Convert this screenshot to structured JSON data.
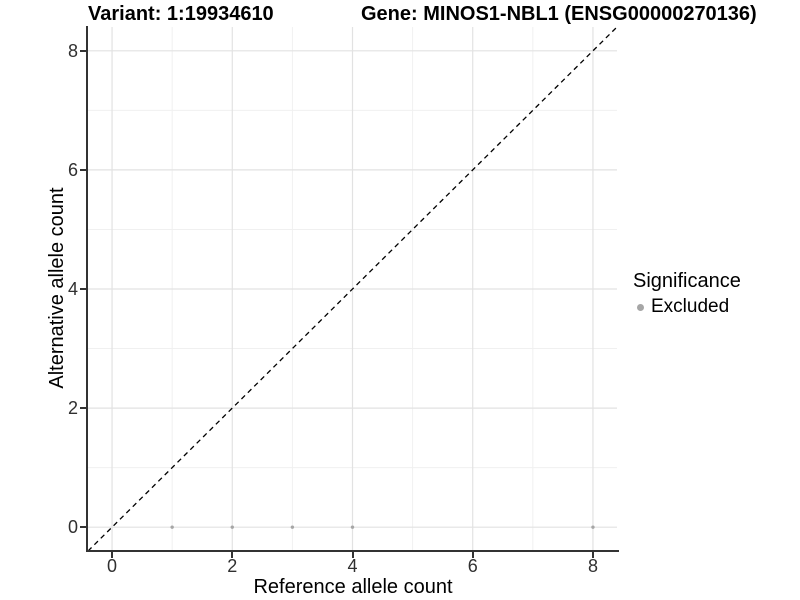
{
  "chart_data": {
    "type": "scatter",
    "title_left": "Variant: 1:19934610",
    "title_right": "Gene: MINOS1-NBL1 (ENSG00000270136)",
    "xlabel": "Reference allele count",
    "ylabel": "Alternative allele count",
    "xlim": [
      -0.4,
      8.4
    ],
    "ylim": [
      -0.4,
      8.4
    ],
    "x_ticks": [
      0,
      2,
      4,
      6,
      8
    ],
    "y_ticks": [
      0,
      2,
      4,
      6,
      8
    ],
    "x_minor_ticks": [
      1,
      3,
      5,
      7
    ],
    "y_minor_ticks": [
      1,
      3,
      5,
      7
    ],
    "grid": true,
    "legend_position": "right",
    "identity_line": {
      "style": "dashed",
      "color": "#000000",
      "from": -0.4,
      "to": 8.4
    },
    "series": [
      {
        "name": "Excluded",
        "color": "#a6a6a6",
        "points": [
          [
            1,
            0
          ],
          [
            2,
            0
          ],
          [
            3,
            0
          ],
          [
            4,
            0
          ],
          [
            8,
            0
          ]
        ]
      }
    ],
    "legend": {
      "title": "Significance",
      "items": [
        {
          "label": "Excluded",
          "color": "#a6a6a6"
        }
      ]
    },
    "colors": {
      "grid_major": "#e2e2e2",
      "grid_minor": "#f0f0f0",
      "axis": "#333333",
      "tick_label": "#303030"
    }
  }
}
